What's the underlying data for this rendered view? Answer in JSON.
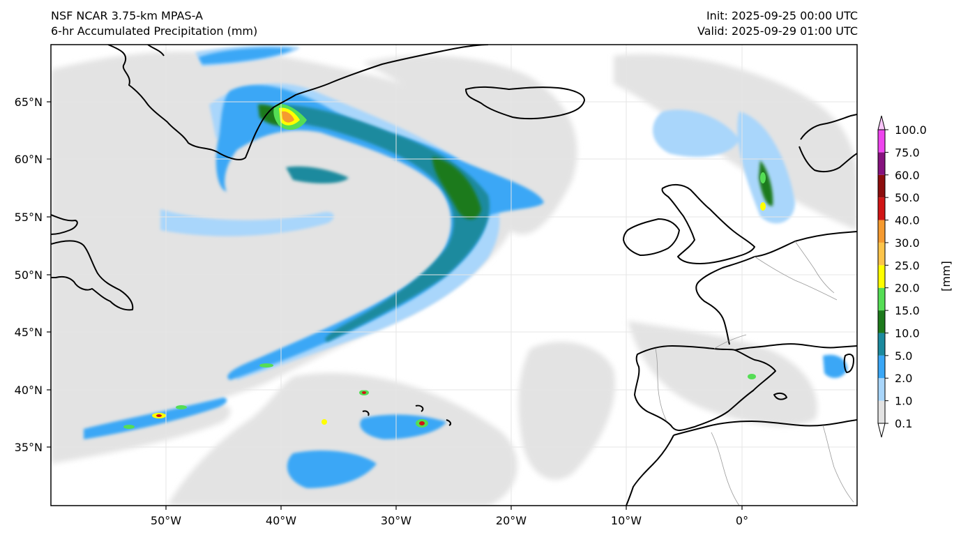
{
  "header": {
    "model": "NSF NCAR 3.75-km MPAS-A",
    "field": "6-hr Accumulated Precipitation (mm)",
    "init": "Init: 2025-09-25 00:00 UTC",
    "valid": "Valid: 2025-09-29 01:00 UTC"
  },
  "map": {
    "lon_range": [
      -60,
      10
    ],
    "lat_range": [
      30,
      70
    ],
    "projection": "equirectangular-like (lat spacing expands poleward)",
    "gridlines": true,
    "lon_ticks": [
      "50°W",
      "40°W",
      "30°W",
      "20°W",
      "10°W",
      "0°"
    ],
    "lat_ticks": [
      "65°N",
      "60°N",
      "55°N",
      "50°N",
      "45°N",
      "40°N",
      "35°N"
    ],
    "coastline_color": "#000000",
    "border_color": "#999999"
  },
  "colorbar": {
    "unit_label": "[mm]",
    "extend": "both",
    "levels": [
      "0.1",
      "1.0",
      "2.0",
      "5.0",
      "10.0",
      "15.0",
      "20.0",
      "25.0",
      "30.0",
      "40.0",
      "50.0",
      "60.0",
      "75.0",
      "100.0"
    ],
    "colors": [
      "#e3e3e3",
      "#a9d6fb",
      "#3aa7f6",
      "#1b8a9e",
      "#1d7a1c",
      "#55dd55",
      "#ffff00",
      "#fcc44a",
      "#f59a30",
      "#d01515",
      "#8c0d0d",
      "#86127e",
      "#ee44ee"
    ],
    "under_color": "#ffffff",
    "over_color": "#f9c5f9"
  }
}
